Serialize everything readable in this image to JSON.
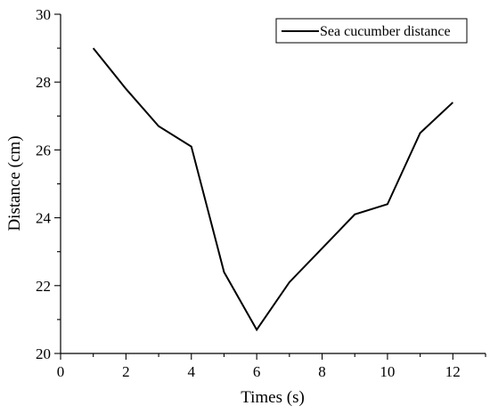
{
  "chart_data": {
    "type": "line",
    "title": "",
    "xlabel": "Times (s)",
    "ylabel": "Distance (cm)",
    "xlim": [
      0,
      13
    ],
    "ylim": [
      20,
      30
    ],
    "xticks": [
      0,
      2,
      4,
      6,
      8,
      10,
      12
    ],
    "yticks": [
      20,
      22,
      24,
      26,
      28,
      30
    ],
    "grid": false,
    "legend_position": "top-right",
    "series": [
      {
        "name": "Sea cucumber distance",
        "color": "#000000",
        "x": [
          1,
          2,
          3,
          4,
          5,
          6,
          7,
          8,
          9,
          10,
          11,
          12
        ],
        "y": [
          29.0,
          27.8,
          26.7,
          26.1,
          22.4,
          20.7,
          22.1,
          23.1,
          24.1,
          24.4,
          26.5,
          27.4
        ]
      }
    ]
  }
}
